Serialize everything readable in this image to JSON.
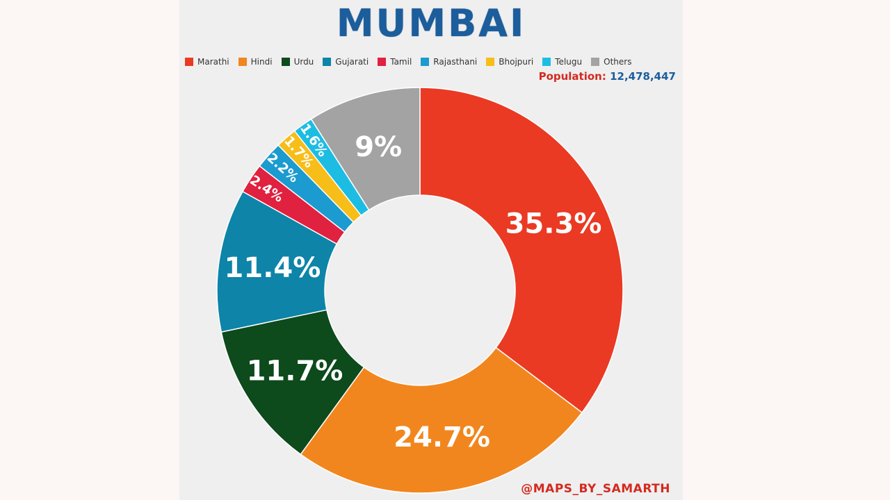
{
  "title": "MUMBAI",
  "population": {
    "label": "Population:",
    "value": "12,478,447"
  },
  "credit": "@MAPS_BY_SAMARTH",
  "chart_data": {
    "type": "pie",
    "donut": true,
    "title": "MUMBAI",
    "legend_position": "top",
    "slices": [
      {
        "label": "Marathi",
        "value": 35.3,
        "display": "35.3%",
        "color": "#ea3a24",
        "label_size": "large"
      },
      {
        "label": "Hindi",
        "value": 24.7,
        "display": "24.7%",
        "color": "#f2861e",
        "label_size": "large"
      },
      {
        "label": "Urdu",
        "value": 11.7,
        "display": "11.7%",
        "color": "#0d4a1c",
        "label_size": "large"
      },
      {
        "label": "Gujarati",
        "value": 11.4,
        "display": "11.4%",
        "color": "#0d84a8",
        "label_size": "large"
      },
      {
        "label": "Tamil",
        "value": 2.4,
        "display": "2.4%",
        "color": "#e0213f",
        "label_size": "small"
      },
      {
        "label": "Rajasthani",
        "value": 2.2,
        "display": "2.2%",
        "color": "#1b9bd0",
        "label_size": "small"
      },
      {
        "label": "Bhojpuri",
        "value": 1.7,
        "display": "1.7%",
        "color": "#f7bd19",
        "label_size": "small"
      },
      {
        "label": "Telugu",
        "value": 1.6,
        "display": "1.6%",
        "color": "#1dbde3",
        "label_size": "small"
      },
      {
        "label": "Others",
        "value": 9,
        "display": "9%",
        "color": "#a3a3a3",
        "label_size": "large"
      }
    ]
  }
}
